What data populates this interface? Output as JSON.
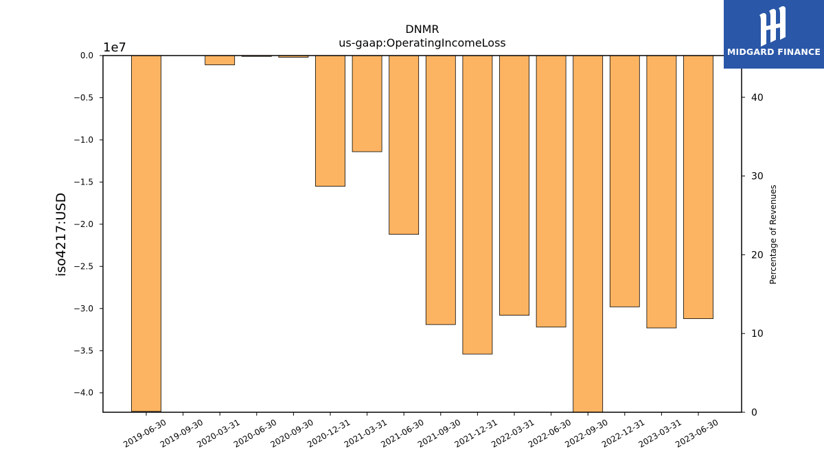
{
  "chart_data": {
    "type": "bar",
    "title": "DNMR",
    "subtitle": "us-gaap:OperatingIncomeLoss",
    "ylabel": "iso4217:USD",
    "y_offset_text": "1e7",
    "y2label": "Percentage of Revenues",
    "ylim": [
      -4.23,
      0.0
    ],
    "y2lim": [
      0,
      45.3
    ],
    "yticks": [
      "0.0",
      "−0.5",
      "−1.0",
      "−1.5",
      "−2.0",
      "−2.5",
      "−3.0",
      "−3.5",
      "−4.0"
    ],
    "ytick_values": [
      0.0,
      -0.5,
      -1.0,
      -1.5,
      -2.0,
      -2.5,
      -3.0,
      -3.5,
      -4.0
    ],
    "y2ticks": [
      "0",
      "10",
      "20",
      "30",
      "40"
    ],
    "y2tick_values": [
      0,
      10,
      20,
      30,
      40
    ],
    "categories": [
      "2019-06-30",
      "2019-09-30",
      "2020-03-31",
      "2020-06-30",
      "2020-09-30",
      "2020-12-31",
      "2021-03-31",
      "2021-06-30",
      "2021-09-30",
      "2021-12-31",
      "2022-03-31",
      "2022-06-30",
      "2022-09-30",
      "2022-12-31",
      "2023-03-31",
      "2023-06-30"
    ],
    "series": [
      {
        "values": [
          -4.22,
          null,
          -0.11,
          -0.01,
          -0.02,
          -1.55,
          -1.14,
          -2.12,
          -3.19,
          -3.54,
          -3.08,
          -3.22,
          -4.23,
          -2.98,
          -3.23,
          -3.12
        ]
      }
    ],
    "bar_color": "#fdb462",
    "edge_color": "#000000"
  },
  "logo": {
    "text": "MIDGARD FINANCE"
  }
}
